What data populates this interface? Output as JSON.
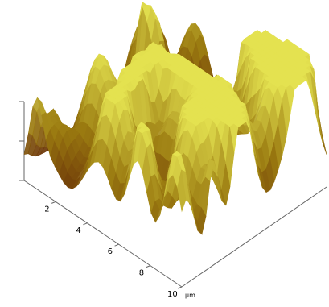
{
  "chart_data": {
    "type": "surface3d",
    "title": "",
    "x_axis": {
      "ticks": [
        "2",
        "4",
        "6",
        "8",
        "10"
      ],
      "unit": "μm",
      "range": [
        0,
        10
      ]
    },
    "y_axis": {
      "unit": "μm",
      "range": [
        0,
        10
      ]
    },
    "z_axis": {
      "ticks": [
        "",
        "",
        ""
      ]
    },
    "colormap": {
      "low": "#5a1a05",
      "mid": "#9a7a10",
      "high": "#e4e250"
    },
    "surface_seed": 7
  }
}
